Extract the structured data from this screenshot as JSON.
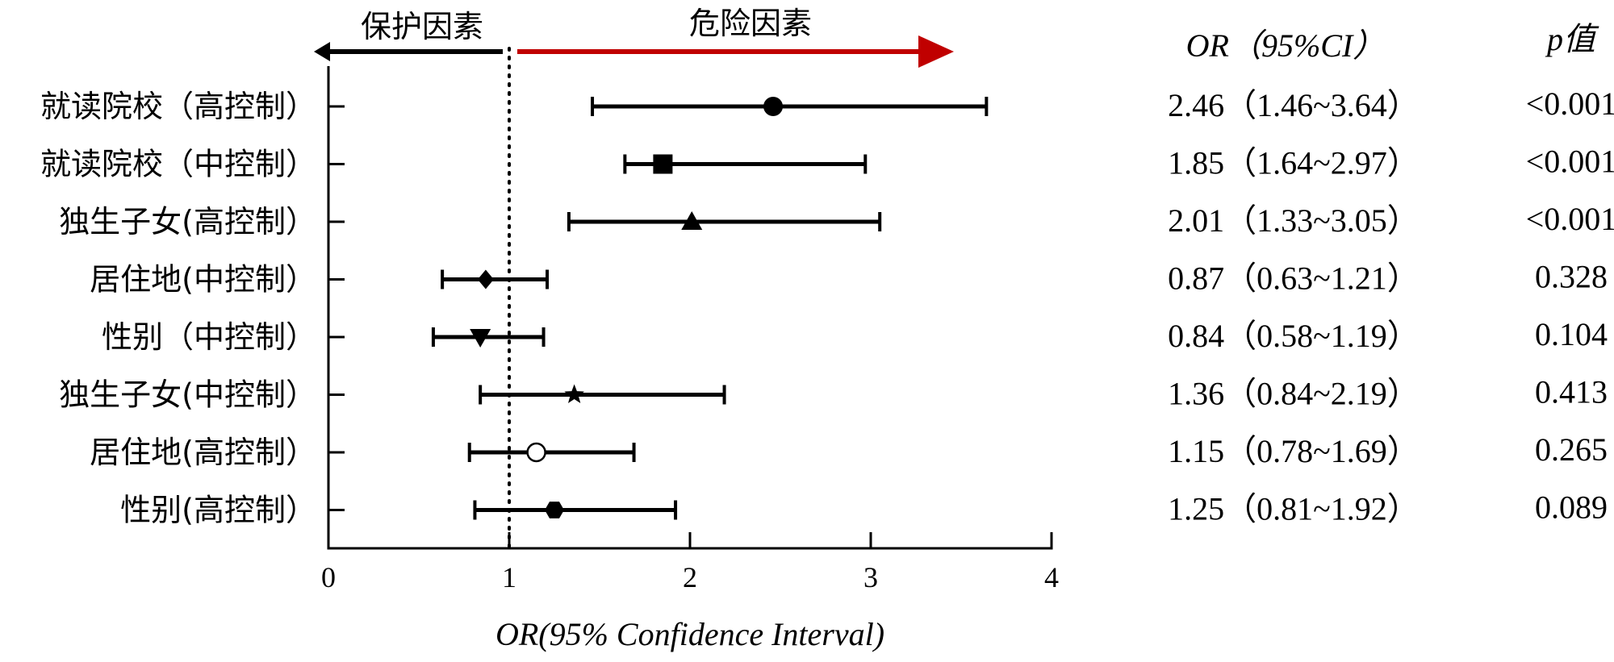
{
  "chart_data": {
    "type": "forest",
    "xlabel": "OR(95% Confidence Interval)",
    "xlim": [
      0,
      4
    ],
    "xticks": [
      0,
      1,
      2,
      3,
      4
    ],
    "reference_line": 1,
    "grid": false,
    "direction_labels": {
      "protective": "保护因素",
      "risk": "危险因素",
      "protective_color": "#000000",
      "risk_color": "#c00000"
    },
    "column_headers": {
      "or_ci": "OR（95%CI）",
      "p": "p值"
    },
    "rows": [
      {
        "label": "就读院校（高控制）",
        "or": 2.46,
        "lower": 1.46,
        "upper": 3.64,
        "or_ci": "2.46（1.46~3.64）",
        "p": "<0.001",
        "marker": "circle-filled"
      },
      {
        "label": "就读院校（中控制）",
        "or": 1.85,
        "lower": 1.64,
        "upper": 2.97,
        "or_ci": "1.85（1.64~2.97）",
        "p": "<0.001",
        "marker": "square-filled"
      },
      {
        "label": "独生子女(高控制）",
        "or": 2.01,
        "lower": 1.33,
        "upper": 3.05,
        "or_ci": "2.01（1.33~3.05）",
        "p": "<0.001",
        "marker": "triangle-up-filled"
      },
      {
        "label": "居住地(中控制）",
        "or": 0.87,
        "lower": 0.63,
        "upper": 1.21,
        "or_ci": "0.87（0.63~1.21）",
        "p": "0.328",
        "marker": "diamond-filled"
      },
      {
        "label": "性别（中控制）",
        "or": 0.84,
        "lower": 0.58,
        "upper": 1.19,
        "or_ci": "0.84（0.58~1.19）",
        "p": "0.104",
        "marker": "triangle-down-filled"
      },
      {
        "label": "独生子女(中控制）",
        "or": 1.36,
        "lower": 0.84,
        "upper": 2.19,
        "or_ci": "1.36（0.84~2.19）",
        "p": "0.413",
        "marker": "star-filled"
      },
      {
        "label": "居住地(高控制）",
        "or": 1.15,
        "lower": 0.78,
        "upper": 1.69,
        "or_ci": "1.15（0.78~1.69）",
        "p": "0.265",
        "marker": "circle-open"
      },
      {
        "label": "性别(高控制）",
        "or": 1.25,
        "lower": 0.81,
        "upper": 1.92,
        "or_ci": "1.25（0.81~1.92）",
        "p": "0.089",
        "marker": "hexagon-filled"
      }
    ]
  }
}
